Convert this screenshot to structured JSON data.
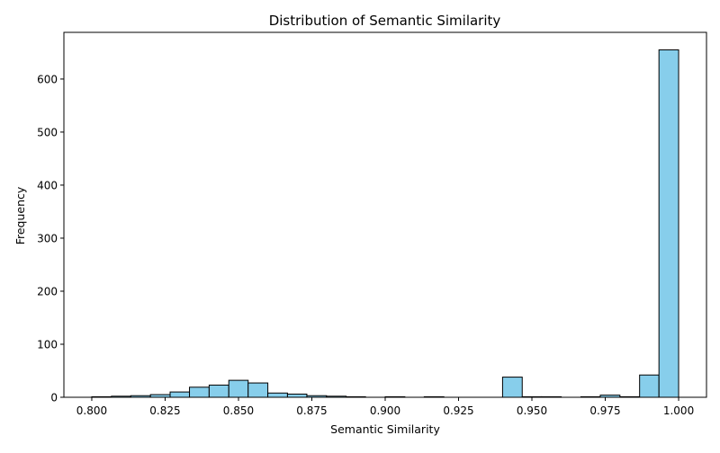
{
  "chart_data": {
    "type": "bar",
    "title": "Distribution of Semantic Similarity",
    "xlabel": "Semantic Similarity",
    "ylabel": "Frequency",
    "xlim": [
      0.7905,
      1.0095
    ],
    "ylim": [
      0,
      688
    ],
    "xticks": [
      0.8,
      0.825,
      0.85,
      0.875,
      0.9,
      0.925,
      0.95,
      0.975,
      1.0
    ],
    "xtick_labels": [
      "0.800",
      "0.825",
      "0.850",
      "0.875",
      "0.900",
      "0.925",
      "0.950",
      "0.975",
      "1.000"
    ],
    "yticks": [
      0,
      100,
      200,
      300,
      400,
      500,
      600
    ],
    "ytick_labels": [
      "0",
      "100",
      "200",
      "300",
      "400",
      "500",
      "600"
    ],
    "bar_color": "#87ceeb",
    "edge_color": "#000000",
    "grid": false,
    "legend": "none",
    "bins": [
      {
        "x0": 0.8,
        "x1": 0.8067,
        "count": 1
      },
      {
        "x0": 0.8067,
        "x1": 0.8133,
        "count": 2
      },
      {
        "x0": 0.8133,
        "x1": 0.82,
        "count": 3
      },
      {
        "x0": 0.82,
        "x1": 0.8267,
        "count": 5
      },
      {
        "x0": 0.8267,
        "x1": 0.8333,
        "count": 10
      },
      {
        "x0": 0.8333,
        "x1": 0.84,
        "count": 19
      },
      {
        "x0": 0.84,
        "x1": 0.8467,
        "count": 23
      },
      {
        "x0": 0.8467,
        "x1": 0.8533,
        "count": 32
      },
      {
        "x0": 0.8533,
        "x1": 0.86,
        "count": 27
      },
      {
        "x0": 0.86,
        "x1": 0.8667,
        "count": 8
      },
      {
        "x0": 0.8667,
        "x1": 0.8733,
        "count": 6
      },
      {
        "x0": 0.8733,
        "x1": 0.88,
        "count": 3
      },
      {
        "x0": 0.88,
        "x1": 0.8867,
        "count": 2
      },
      {
        "x0": 0.8867,
        "x1": 0.8933,
        "count": 1
      },
      {
        "x0": 0.8933,
        "x1": 0.9,
        "count": 0
      },
      {
        "x0": 0.9,
        "x1": 0.9067,
        "count": 1
      },
      {
        "x0": 0.9067,
        "x1": 0.9133,
        "count": 0
      },
      {
        "x0": 0.9133,
        "x1": 0.92,
        "count": 1
      },
      {
        "x0": 0.92,
        "x1": 0.9267,
        "count": 0
      },
      {
        "x0": 0.9267,
        "x1": 0.9333,
        "count": 0
      },
      {
        "x0": 0.9333,
        "x1": 0.94,
        "count": 0
      },
      {
        "x0": 0.94,
        "x1": 0.9467,
        "count": 38
      },
      {
        "x0": 0.9467,
        "x1": 0.9533,
        "count": 1
      },
      {
        "x0": 0.9533,
        "x1": 0.96,
        "count": 1
      },
      {
        "x0": 0.96,
        "x1": 0.9667,
        "count": 0
      },
      {
        "x0": 0.9667,
        "x1": 0.9733,
        "count": 1
      },
      {
        "x0": 0.9733,
        "x1": 0.98,
        "count": 4
      },
      {
        "x0": 0.98,
        "x1": 0.9867,
        "count": 1
      },
      {
        "x0": 0.9867,
        "x1": 0.9933,
        "count": 42
      },
      {
        "x0": 0.9933,
        "x1": 1.0,
        "count": 655
      }
    ]
  }
}
